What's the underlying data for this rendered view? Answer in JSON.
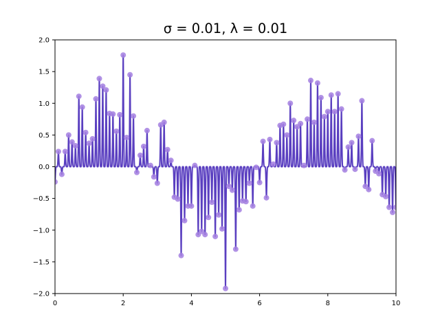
{
  "chart_data": {
    "type": "line",
    "title": "σ = 0.01, λ = 0.01",
    "xlabel": "",
    "ylabel": "",
    "xlim": [
      0,
      10
    ],
    "ylim": [
      -2.0,
      2.0
    ],
    "grid": false,
    "x_ticks": [
      0,
      2,
      4,
      6,
      8,
      10
    ],
    "x_tick_labels": [
      "0",
      "2",
      "4",
      "6",
      "8",
      "10"
    ],
    "y_ticks": [
      -2.0,
      -1.5,
      -1.0,
      -0.5,
      0.0,
      0.5,
      1.0,
      1.5,
      2.0
    ],
    "y_tick_labels": [
      "−2.0",
      "−1.5",
      "−1.0",
      "−0.5",
      "0.0",
      "0.5",
      "1.0",
      "1.5",
      "2.0"
    ],
    "line_color": "#5a3fc0",
    "marker_color": "#a37fe0",
    "series": [
      {
        "x": [
          0.0,
          0.1,
          0.2,
          0.3,
          0.4,
          0.5,
          0.6,
          0.7,
          0.8,
          0.9,
          1.0,
          1.1,
          1.2,
          1.3,
          1.4,
          1.5,
          1.6,
          1.7,
          1.8,
          1.9,
          2.0,
          2.1,
          2.2,
          2.3,
          2.4,
          2.5,
          2.6,
          2.7,
          2.8,
          2.9,
          3.0,
          3.1,
          3.2,
          3.3,
          3.4,
          3.5,
          3.6,
          3.7,
          3.8,
          3.9,
          4.0,
          4.1,
          4.2,
          4.3,
          4.4,
          4.5,
          4.6,
          4.7,
          4.8,
          4.9,
          5.0,
          5.1,
          5.2,
          5.3,
          5.4,
          5.5,
          5.6,
          5.7,
          5.8,
          5.9,
          6.0,
          6.1,
          6.2,
          6.3,
          6.4,
          6.5,
          6.6,
          6.7,
          6.8,
          6.9,
          7.0,
          7.1,
          7.2,
          7.3,
          7.4,
          7.5,
          7.6,
          7.7,
          7.8,
          7.9,
          8.0,
          8.1,
          8.2,
          8.3,
          8.4,
          8.5,
          8.6,
          8.7,
          8.8,
          8.9,
          9.0,
          9.1,
          9.2,
          9.3,
          9.4,
          9.5,
          9.6,
          9.7,
          9.8,
          9.9,
          10.0
        ],
        "y": [
          -0.24,
          0.24,
          -0.12,
          0.24,
          0.5,
          0.39,
          0.33,
          1.11,
          0.94,
          0.54,
          0.37,
          0.44,
          1.07,
          1.39,
          1.27,
          1.21,
          0.84,
          0.83,
          0.56,
          0.82,
          1.76,
          0.46,
          1.45,
          0.8,
          -0.09,
          0.18,
          0.32,
          0.57,
          0.02,
          -0.16,
          -0.26,
          0.66,
          0.7,
          0.27,
          0.1,
          -0.48,
          -0.51,
          -1.4,
          -0.85,
          -0.62,
          -0.62,
          0.02,
          -1.07,
          -1.02,
          -1.07,
          -0.8,
          -0.56,
          -1.1,
          -0.76,
          -0.98,
          -1.92,
          -0.31,
          -0.37,
          -1.3,
          -0.68,
          -0.54,
          -0.55,
          -0.26,
          -0.62,
          -0.01,
          -0.25,
          0.4,
          -0.49,
          0.43,
          0.04,
          0.38,
          0.65,
          0.67,
          0.5,
          1.0,
          0.73,
          0.63,
          0.68,
          0.02,
          0.75,
          1.36,
          0.7,
          1.32,
          1.09,
          0.79,
          0.87,
          1.13,
          0.87,
          1.15,
          0.91,
          -0.05,
          0.31,
          0.38,
          -0.04,
          0.48,
          1.04,
          -0.31,
          -0.36,
          0.41,
          -0.07,
          -0.11,
          -0.44,
          -0.47,
          -0.64,
          -0.72,
          -0.64
        ]
      }
    ]
  }
}
